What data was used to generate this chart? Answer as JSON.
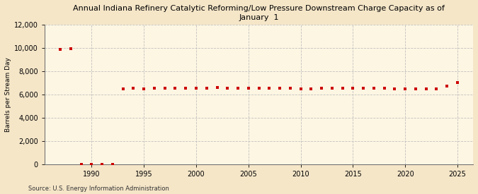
{
  "title": "Annual Indiana Refinery Catalytic Reforming/Low Pressure Downstream Charge Capacity as of\nJanuary  1",
  "ylabel": "Barrels per Stream Day",
  "source": "Source: U.S. Energy Information Administration",
  "background_color": "#f5e6c8",
  "plot_background_color": "#fdf6e3",
  "marker_color": "#cc0000",
  "grid_color": "#bbbbbb",
  "years": [
    1987,
    1988,
    1989,
    1990,
    1991,
    1992,
    1993,
    1994,
    1995,
    1996,
    1997,
    1998,
    1999,
    2000,
    2001,
    2002,
    2003,
    2004,
    2005,
    2006,
    2007,
    2008,
    2009,
    2010,
    2011,
    2012,
    2013,
    2014,
    2015,
    2016,
    2017,
    2018,
    2019,
    2020,
    2021,
    2022,
    2023,
    2024,
    2025
  ],
  "values": [
    9900,
    9950,
    0,
    0,
    0,
    0,
    6500,
    6550,
    6500,
    6550,
    6550,
    6550,
    6550,
    6550,
    6550,
    6600,
    6550,
    6550,
    6550,
    6550,
    6550,
    6550,
    6550,
    6500,
    6500,
    6550,
    6550,
    6550,
    6550,
    6550,
    6550,
    6550,
    6500,
    6500,
    6500,
    6450,
    6450,
    6700,
    7000
  ],
  "ylim": [
    0,
    12000
  ],
  "yticks": [
    0,
    2000,
    4000,
    6000,
    8000,
    10000,
    12000
  ],
  "xticks": [
    1990,
    1995,
    2000,
    2005,
    2010,
    2015,
    2020,
    2025
  ],
  "xlim": [
    1985.5,
    2026.5
  ]
}
